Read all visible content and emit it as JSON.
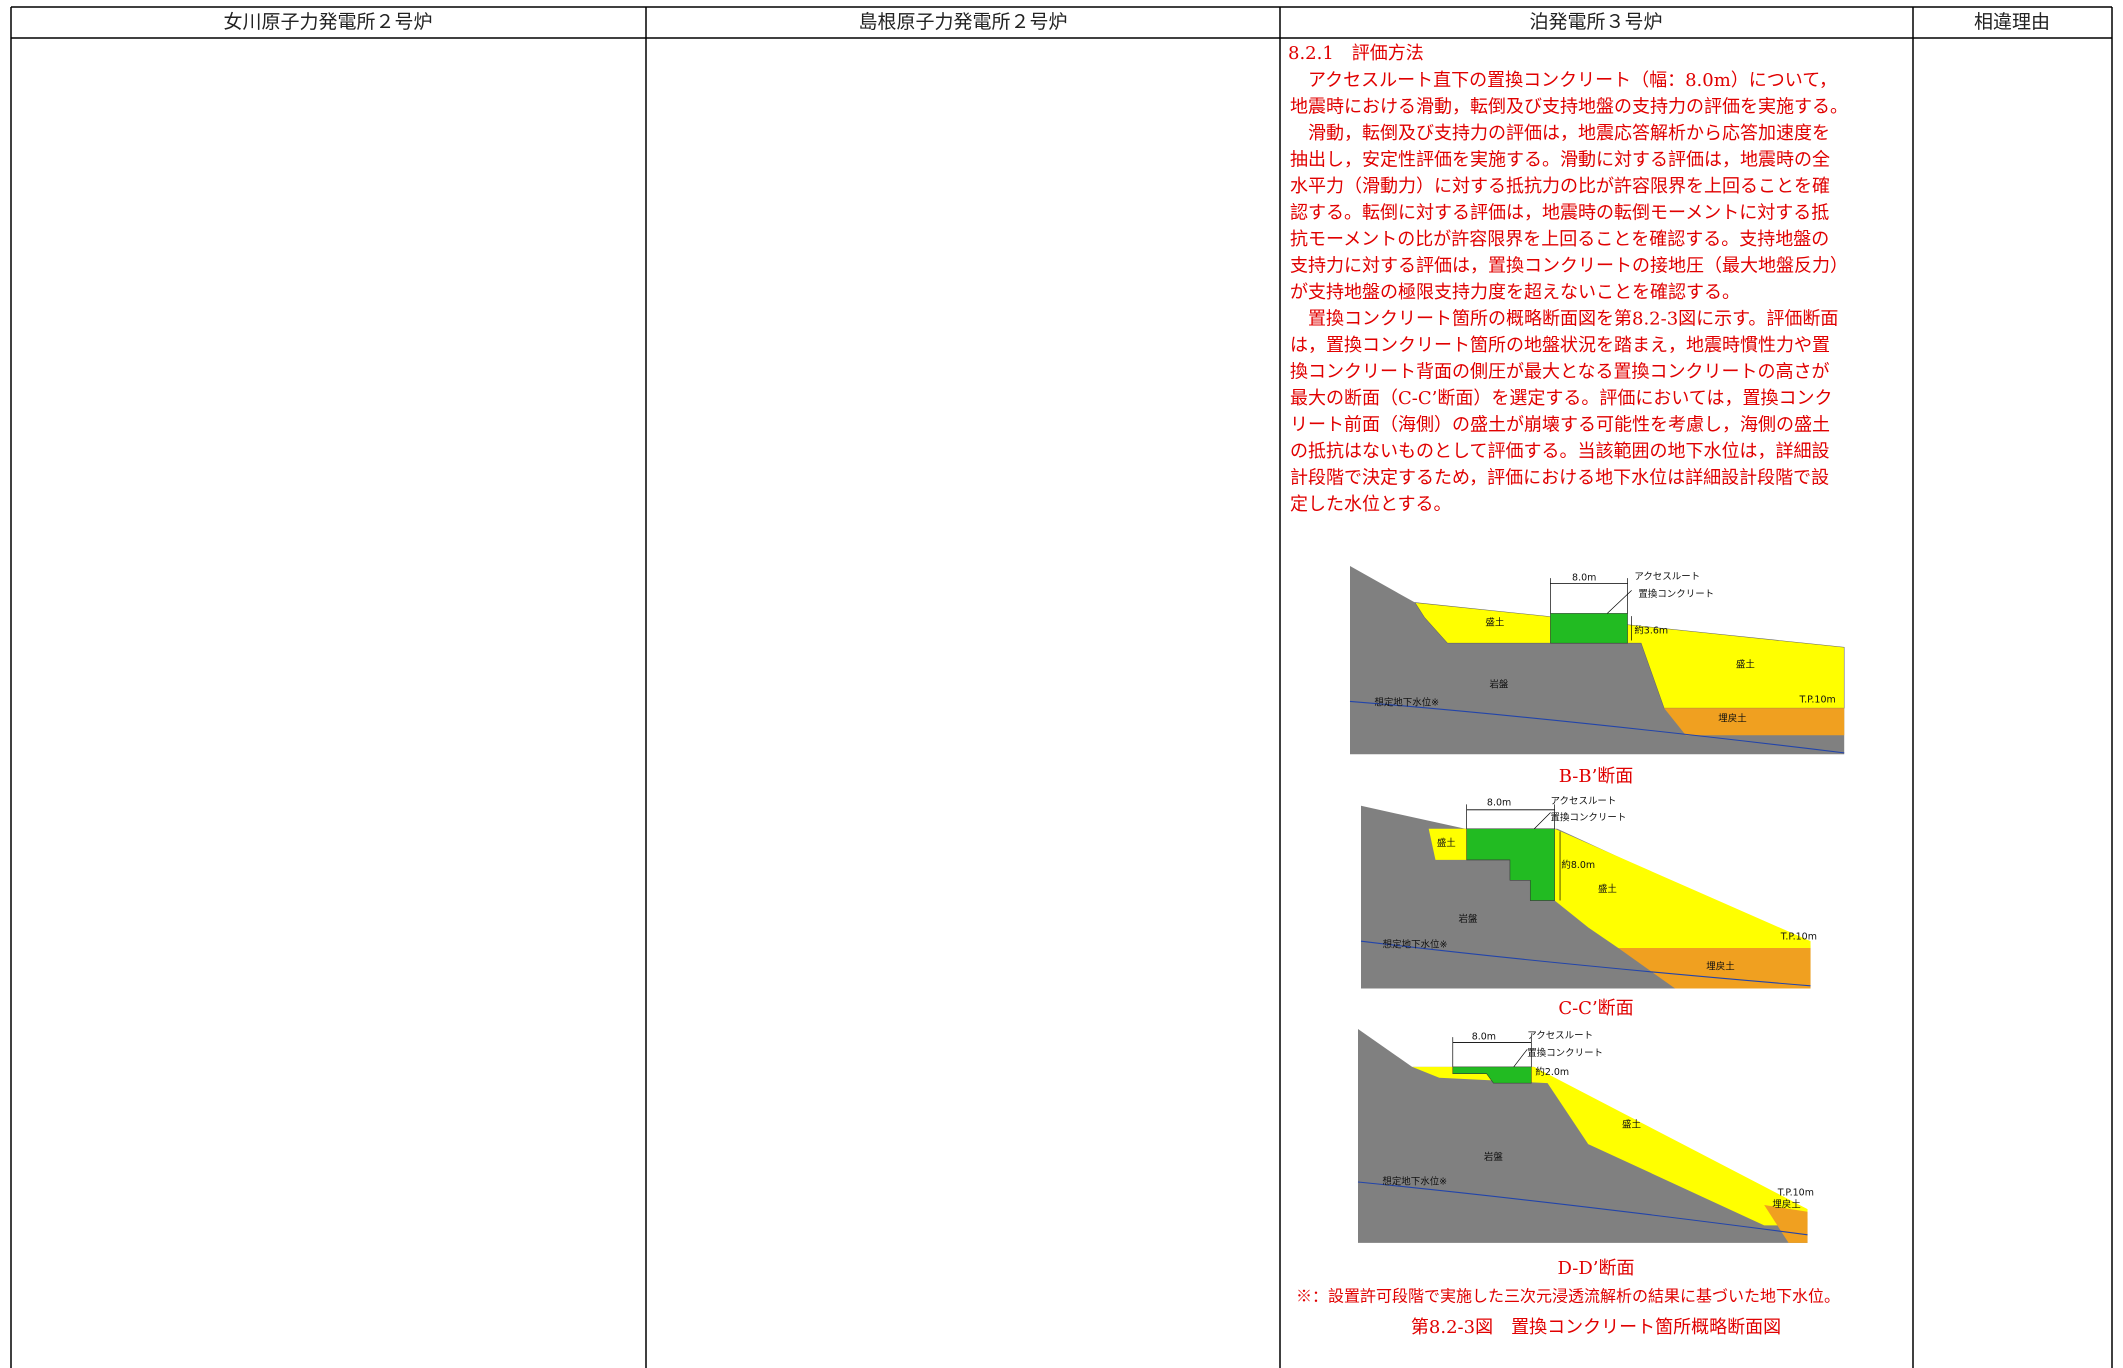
{
  "table": {
    "headers": [
      "女川原子力発電所２号炉",
      "島根原子力発電所２号炉",
      "泊発電所３号炉",
      "相違理由"
    ],
    "section": {
      "heading": "8.2.1　評価方法",
      "lines": [
        "　アクセスルート直下の置換コンクリート（幅：8.0m）について，",
        "地震時における滑動，転倒及び支持地盤の支持力の評価を実施する。",
        "　滑動，転倒及び支持力の評価は，地震応答解析から応答加速度を",
        "抽出し，安定性評価を実施する。滑動に対する評価は，地震時の全",
        "水平力（滑動力）に対する抵抗力の比が許容限界を上回ることを確",
        "認する。転倒に対する評価は，地震時の転倒モーメントに対する抵",
        "抗モーメントの比が許容限界を上回ることを確認する。支持地盤の",
        "支持力に対する評価は，置換コンクリートの接地圧（最大地盤反力）",
        "が支持地盤の極限支持力度を超えないことを確認する。",
        "　置換コンクリート箇所の概略断面図を第8.2-3図に示す。評価断面",
        "は，置換コンクリート箇所の地盤状況を踏まえ，地震時慣性力や置",
        "換コンクリート背面の側圧が最大となる置換コンクリートの高さが",
        "最大の断面（C-C’断面）を選定する。評価においては，置換コンク",
        "リート前面（海側）の盛土が崩壊する可能性を考慮し，海側の盛土",
        "の抵抗はないものとして評価する。当該範囲の地下水位は，詳細設",
        "計段階で決定するため，評価における地下水位は詳細設計段階で設",
        "定した水位とする。"
      ],
      "figures": [
        {
          "caption": "B-B’断面",
          "labels": [
            "8.0m",
            "アクセスルート",
            "置換コンクリート",
            "盛土",
            "約3.6m",
            "盛土",
            "岩盤",
            "想定地下水位※",
            "T.P.10m",
            "埋戻土"
          ]
        },
        {
          "caption": "C-C’断面",
          "labels": [
            "8.0m",
            "アクセスルート",
            "置換コンクリート",
            "盛土",
            "約8.0m",
            "盛土",
            "岩盤",
            "想定地下水位※",
            "T.P.10m",
            "埋戻土"
          ]
        },
        {
          "caption": "D-D’断面",
          "labels": [
            "8.0m",
            "アクセスルート",
            "置換コンクリート",
            "約2.0m",
            "盛土",
            "岩盤",
            "想定地下水位※",
            "T.P.10m",
            "埋戻土"
          ]
        }
      ],
      "note": "※：設置許可段階で実施した三次元浸透流解析の結果に基づいた地下水位。",
      "figure_title": "第8.2-3図　置換コンクリート箇所概略断面図"
    }
  }
}
